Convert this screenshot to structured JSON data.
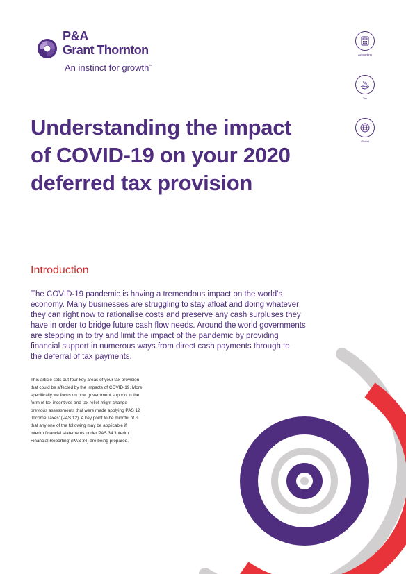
{
  "logo": {
    "line1": "P&A",
    "line2": "Grant Thornton",
    "tagline": "An instinct for growth",
    "trademark": "™"
  },
  "side_icons": [
    {
      "name": "calculator-icon",
      "label": "Accounting"
    },
    {
      "name": "percent-hand-icon",
      "label": "Tax"
    },
    {
      "name": "globe-icon",
      "label": "Global"
    }
  ],
  "title_lines": [
    "Understanding the impact",
    "of COVID-19 on your 2020",
    "deferred tax provision"
  ],
  "intro": {
    "heading": "Introduction",
    "lead_lines": [
      "The COVID-19 pandemic is having a tremendous impact on the world’s",
      "economy. Many businesses are struggling to stay afloat and doing whatever",
      "they can right now to rationalise costs and preserve any cash surpluses they",
      "have in order to bridge future cash flow needs. Around the world governments",
      "are stepping in to try and limit the impact of the pandemic by providing",
      "financial support in numerous ways from direct cash payments through to",
      "the deferral of tax payments."
    ],
    "body_lines": [
      "This article sets out four key areas of your tax provision",
      "that could be affected by the impacts of COVID-19. More",
      "specifically we focus on how government support in the",
      "form of tax incentives and tax relief might change",
      "previous assessments that were made applying PAS 12",
      "‘Income Taxes’ (PAS 12). A key point to be mindful of is",
      "that any one of the following may be applicable if",
      "interim financial statements under PAS 34 ‘Interim",
      "Financial Reporting’ (PAS 34) are being prepared."
    ]
  },
  "colors": {
    "brand_purple": "#4f2d7f",
    "accent_red": "#ce2c2c",
    "swirl_grey": "#d2cfd1",
    "swirl_red": "#e8333b",
    "swirl_purple": "#4f2d7f"
  }
}
